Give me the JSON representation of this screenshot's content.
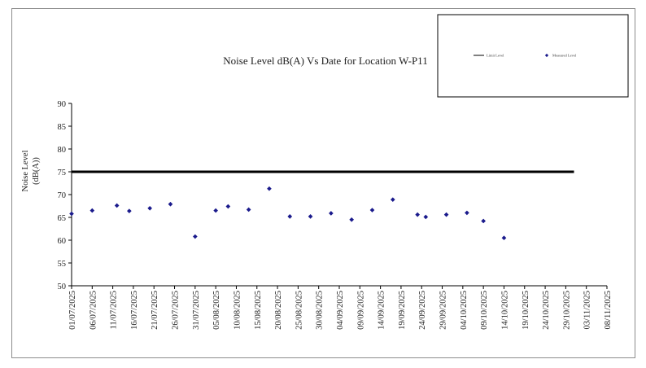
{
  "chart_data": {
    "type": "scatter",
    "title": "Noise Level dB(A) Vs Date for Location W-P11",
    "ylabel_line1": "Noise Level",
    "ylabel_line2": "(dB(A))",
    "xlabel": "",
    "ylim": [
      50,
      90
    ],
    "yticks": [
      50,
      55,
      60,
      65,
      70,
      75,
      80,
      85,
      90
    ],
    "xlim": [
      "01/07/2025",
      "08/11/2025"
    ],
    "xtick_labels": [
      "01/07/2025",
      "06/07/2025",
      "11/07/2025",
      "16/07/2025",
      "21/07/2025",
      "26/07/2025",
      "31/07/2025",
      "05/08/2025",
      "10/08/2025",
      "15/08/2025",
      "20/08/2025",
      "25/08/2025",
      "30/08/2025",
      "04/09/2025",
      "09/09/2025",
      "14/09/2025",
      "19/09/2025",
      "24/09/2025",
      "29/09/2025",
      "04/10/2025",
      "09/10/2025",
      "14/10/2025",
      "19/10/2025",
      "24/10/2025",
      "29/10/2025",
      "03/11/2025",
      "08/11/2025"
    ],
    "grid": false,
    "legend_position": "top-right",
    "series": [
      {
        "name": "Limit Level",
        "kind": "line",
        "color": "#000000",
        "points": [
          [
            "01/07/2025",
            75
          ],
          [
            "31/10/2025",
            75
          ]
        ]
      },
      {
        "name": "Measured Level",
        "kind": "scatter",
        "color": "#1a1a8c",
        "points": [
          [
            "01/07/2025",
            65.8
          ],
          [
            "06/07/2025",
            66.5
          ],
          [
            "12/07/2025",
            67.6
          ],
          [
            "15/07/2025",
            66.4
          ],
          [
            "20/07/2025",
            67.0
          ],
          [
            "25/07/2025",
            67.9
          ],
          [
            "31/07/2025",
            60.8
          ],
          [
            "05/08/2025",
            66.5
          ],
          [
            "08/08/2025",
            67.4
          ],
          [
            "13/08/2025",
            66.7
          ],
          [
            "18/08/2025",
            71.3
          ],
          [
            "23/08/2025",
            65.2
          ],
          [
            "28/08/2025",
            65.2
          ],
          [
            "02/09/2025",
            65.9
          ],
          [
            "07/09/2025",
            64.5
          ],
          [
            "12/09/2025",
            66.6
          ],
          [
            "17/09/2025",
            68.9
          ],
          [
            "23/09/2025",
            65.6
          ],
          [
            "25/09/2025",
            65.1
          ],
          [
            "30/09/2025",
            65.6
          ],
          [
            "05/10/2025",
            66.0
          ],
          [
            "09/10/2025",
            64.2
          ],
          [
            "14/10/2025",
            60.5
          ]
        ]
      }
    ]
  },
  "legend": {
    "items": [
      "Limit Level",
      "Measured Level"
    ]
  }
}
